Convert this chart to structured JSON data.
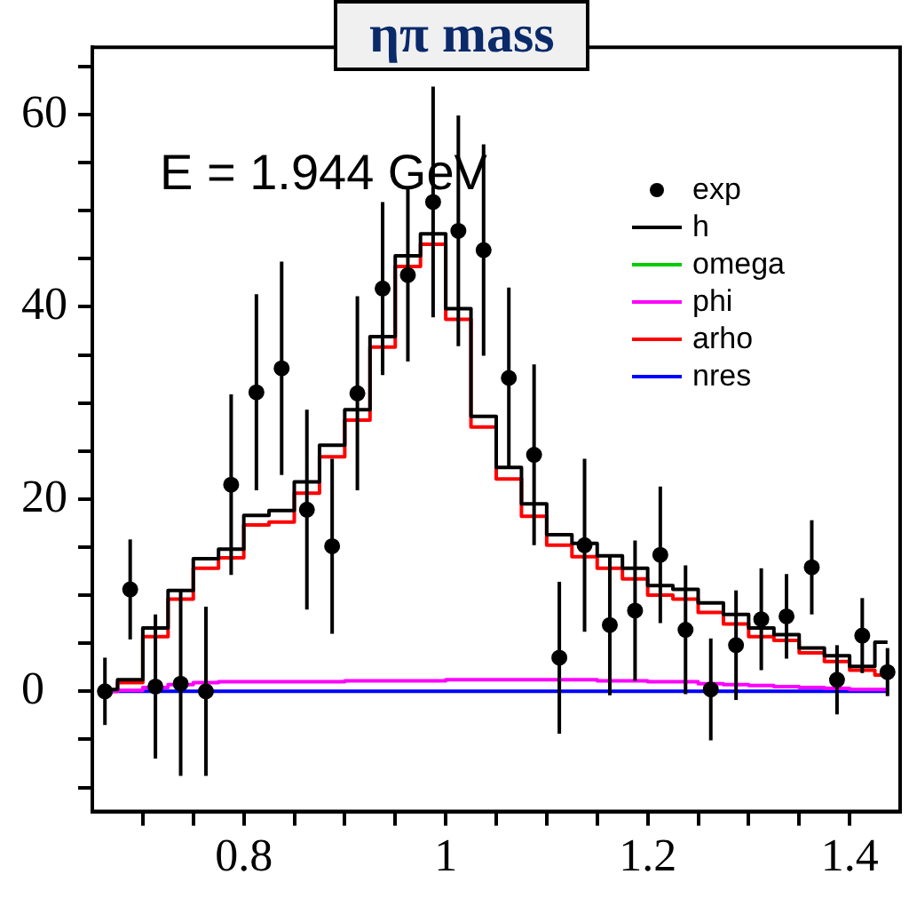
{
  "chart_data": {
    "type": "step",
    "title": "ηπ mass",
    "annotations": [
      "E = 1.944 GeV"
    ],
    "x": [
      0.6625,
      0.6875,
      0.7125,
      0.7375,
      0.7625,
      0.7875,
      0.8125,
      0.8375,
      0.8625,
      0.8875,
      0.9125,
      0.9375,
      0.9625,
      0.9875,
      1.0125,
      1.0375,
      1.0625,
      1.0875,
      1.1125,
      1.1375,
      1.1625,
      1.1875,
      1.2125,
      1.2375,
      1.2625,
      1.2875,
      1.3125,
      1.3375,
      1.3625,
      1.3875,
      1.4125,
      1.4375
    ],
    "series": [
      {
        "name": "exp",
        "type": "scatter",
        "color": "#000000",
        "marker": "circle",
        "x": [
          0.6625,
          0.6875,
          0.7125,
          0.7375,
          0.7625,
          0.7875,
          0.8125,
          0.8375,
          0.8625,
          0.8875,
          0.9125,
          0.9375,
          0.9625,
          0.9875,
          1.0125,
          1.0375,
          1.0625,
          1.0875,
          1.1125,
          1.1375,
          1.1625,
          1.1875,
          1.2125,
          1.2375,
          1.2625,
          1.2875,
          1.3125,
          1.3375,
          1.3625,
          1.3875,
          1.4125,
          1.4375
        ],
        "values": [
          0,
          10.6,
          0.5,
          0.8,
          0,
          21.5,
          31.1,
          33.6,
          18.9,
          15.1,
          31,
          41.9,
          43.3,
          50.9,
          47.9,
          45.9,
          32.6,
          24.6,
          3.5,
          15.2,
          6.9,
          8.4,
          14.2,
          6.4,
          0.2,
          4.8,
          7.5,
          7.8,
          12.9,
          1.2,
          5.8,
          2
        ],
        "errors": [
          3.5,
          5.2,
          7.5,
          9.6,
          8.8,
          9.4,
          10.2,
          11.1,
          10.4,
          9.1,
          10.1,
          9,
          9,
          12,
          12,
          11,
          9.4,
          9.4,
          7.9,
          9,
          7.3,
          7.3,
          7.1,
          6.7,
          5.3,
          5.7,
          5.3,
          4.4,
          4.9,
          3.6,
          3.9,
          2.5
        ]
      },
      {
        "name": "h",
        "color": "#000000",
        "values": [
          0.2,
          1.2,
          6.6,
          10.5,
          13.8,
          14.8,
          18.3,
          18.8,
          21.8,
          25.6,
          29.3,
          36.9,
          45.3,
          47.6,
          39.8,
          28.6,
          23.3,
          19.5,
          16.3,
          15.4,
          14.1,
          12.8,
          11,
          10.6,
          9.2,
          8,
          6.6,
          5.9,
          4.5,
          3.7,
          2.6,
          5.1
        ]
      },
      {
        "name": "omega",
        "color": "#00cc00",
        "values": [
          null,
          null,
          null,
          null,
          null,
          null,
          null,
          null,
          null,
          null,
          null,
          null,
          null,
          null,
          null,
          null,
          null,
          null,
          null,
          null,
          null,
          null,
          null,
          null,
          null,
          null,
          null,
          null,
          null,
          null,
          null,
          null
        ]
      },
      {
        "name": "phi",
        "color": "#ff00ff",
        "values": [
          0,
          0.1,
          0.4,
          0.7,
          0.9,
          1,
          1,
          1,
          1,
          1,
          1.1,
          1.1,
          1.1,
          1.1,
          1.2,
          1.2,
          1.2,
          1.2,
          1.2,
          1.2,
          1.1,
          1.1,
          1,
          1,
          0.8,
          0.7,
          0.6,
          0.5,
          0.4,
          0.3,
          0.2,
          0.2
        ]
      },
      {
        "name": "arho",
        "color": "#ff0000",
        "values": [
          0,
          0.9,
          5.7,
          9.6,
          12.8,
          13.9,
          17.3,
          17.6,
          20.6,
          24.4,
          28.2,
          35.8,
          44.2,
          46.5,
          38.7,
          27.5,
          22.1,
          18.2,
          15.2,
          14,
          12.8,
          11.7,
          10,
          9.6,
          8.2,
          7,
          5.7,
          5.3,
          4,
          3.1,
          2.2,
          1.7
        ]
      },
      {
        "name": "nres",
        "color": "#0000ff",
        "values": [
          0,
          0,
          0,
          0,
          0,
          0,
          0,
          0,
          0,
          0,
          0,
          0,
          0,
          0,
          0,
          0,
          0,
          0,
          0,
          0,
          0,
          0,
          0,
          0,
          0,
          0,
          0,
          0,
          0,
          0,
          0,
          0
        ]
      }
    ],
    "xlim": [
      0.65,
      1.45
    ],
    "xticks": [
      {
        "value": 0.7,
        "label": null
      },
      {
        "value": 0.75,
        "label": null
      },
      0.8,
      {
        "value": 0.85,
        "label": null
      },
      {
        "value": 0.9,
        "label": null
      },
      {
        "value": 0.95,
        "label": null
      },
      1,
      {
        "value": 1.05,
        "label": null
      },
      {
        "value": 1.1,
        "label": null
      },
      {
        "value": 1.15,
        "label": null
      },
      1.2,
      {
        "value": 1.25,
        "label": null
      },
      {
        "value": 1.3,
        "label": null
      },
      {
        "value": 1.35,
        "label": null
      },
      1.4
    ],
    "ylim": [
      -12.5,
      67
    ],
    "yticks": [
      {
        "value": -10,
        "label": null
      },
      {
        "value": -5,
        "label": null
      },
      0,
      {
        "value": 5,
        "label": null
      },
      {
        "value": 10,
        "label": null
      },
      {
        "value": 15,
        "label": null
      },
      20,
      {
        "value": 25,
        "label": null
      },
      {
        "value": 30,
        "label": null
      },
      {
        "value": 35,
        "label": null
      },
      40,
      {
        "value": 45,
        "label": null
      },
      {
        "value": 50,
        "label": null
      },
      {
        "value": 55,
        "label": null
      },
      60,
      {
        "value": 65,
        "label": null
      }
    ],
    "legend": "top right"
  }
}
